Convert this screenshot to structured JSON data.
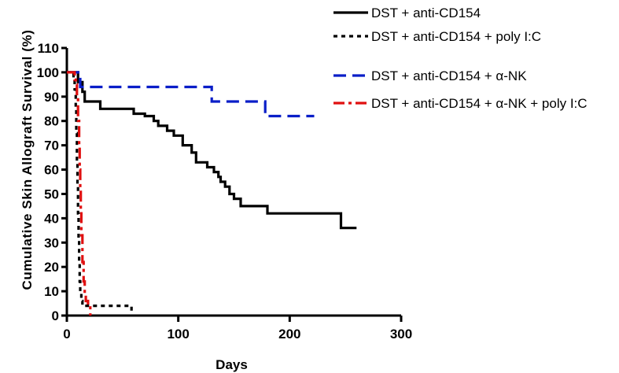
{
  "chart_data": {
    "type": "line",
    "step": true,
    "xlabel": "Days",
    "ylabel": "Cumulative Skin Allograft Survival (%)",
    "xlim": [
      0,
      300
    ],
    "ylim": [
      0,
      110
    ],
    "xticks": [
      0,
      100,
      200,
      300
    ],
    "yticks": [
      0,
      10,
      20,
      30,
      40,
      50,
      60,
      70,
      80,
      90,
      100,
      110
    ],
    "grid": false,
    "legend_position": "top-right",
    "series": [
      {
        "name": "DST + anti-CD154",
        "color": "#000000",
        "dash": "solid",
        "points": [
          [
            0,
            100
          ],
          [
            8,
            100
          ],
          [
            10,
            96
          ],
          [
            14,
            92
          ],
          [
            16,
            88
          ],
          [
            30,
            85
          ],
          [
            60,
            83
          ],
          [
            70,
            82
          ],
          [
            78,
            80
          ],
          [
            82,
            78
          ],
          [
            90,
            76
          ],
          [
            96,
            74
          ],
          [
            104,
            70
          ],
          [
            112,
            67
          ],
          [
            116,
            63
          ],
          [
            126,
            61
          ],
          [
            132,
            59
          ],
          [
            136,
            57
          ],
          [
            138,
            55
          ],
          [
            142,
            53
          ],
          [
            146,
            50
          ],
          [
            150,
            48
          ],
          [
            156,
            45
          ],
          [
            180,
            42
          ],
          [
            246,
            42
          ],
          [
            246,
            36
          ],
          [
            260,
            36
          ]
        ]
      },
      {
        "name": "DST + anti-CD154 + poly I:C",
        "color": "#000000",
        "dash": "dotted",
        "points": [
          [
            0,
            100
          ],
          [
            6,
            100
          ],
          [
            6,
            97
          ],
          [
            7,
            93
          ],
          [
            8,
            85
          ],
          [
            8.5,
            75
          ],
          [
            9,
            63
          ],
          [
            9.5,
            53
          ],
          [
            10,
            42
          ],
          [
            10.5,
            31
          ],
          [
            11,
            22
          ],
          [
            11.5,
            14
          ],
          [
            12,
            9
          ],
          [
            13,
            6
          ],
          [
            14,
            4
          ],
          [
            58,
            4
          ],
          [
            58,
            0
          ]
        ]
      },
      {
        "name": "DST + anti-CD154 + α-NK",
        "color": "#0a1ec8",
        "dash": "dashed",
        "points": [
          [
            0,
            100
          ],
          [
            12,
            100
          ],
          [
            12,
            94
          ],
          [
            130,
            94
          ],
          [
            130,
            88
          ],
          [
            178,
            88
          ],
          [
            178,
            82
          ],
          [
            222,
            82
          ]
        ]
      },
      {
        "name": "DST + anti-CD154 + α-NK + poly I:C",
        "color": "#e01010",
        "dash": "dashdot",
        "points": [
          [
            0,
            100
          ],
          [
            7,
            100
          ],
          [
            7,
            97
          ],
          [
            8,
            95
          ],
          [
            9,
            90
          ],
          [
            10,
            80
          ],
          [
            11,
            70
          ],
          [
            11.5,
            60
          ],
          [
            12,
            52
          ],
          [
            12.5,
            43
          ],
          [
            13,
            33
          ],
          [
            14,
            22
          ],
          [
            15,
            14
          ],
          [
            16,
            9
          ],
          [
            17,
            6
          ],
          [
            19,
            4
          ],
          [
            21,
            4
          ],
          [
            21,
            0
          ]
        ]
      }
    ]
  }
}
